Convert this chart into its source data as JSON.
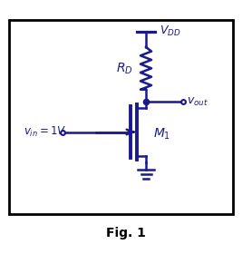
{
  "fig_label": "Fig. 1",
  "circuit_color": "#1a1a8c",
  "background_color": "#ffffff",
  "box_color": "#000000",
  "labels": {
    "VDD": "V_DD",
    "RD": "R_D",
    "vout": "v_out",
    "vin": "v_in = 1V",
    "M1": "M_1"
  },
  "fig_width": 2.78,
  "fig_height": 2.8,
  "dpi": 100
}
